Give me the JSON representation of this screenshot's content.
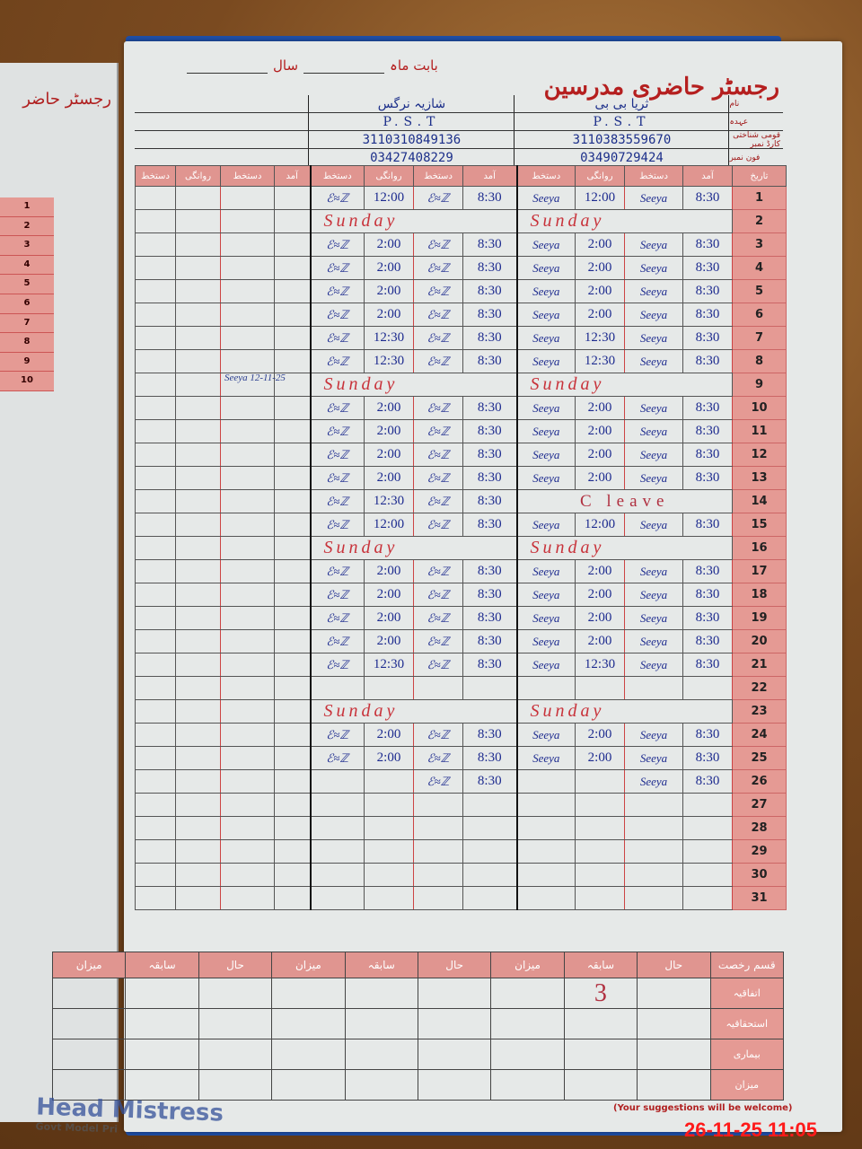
{
  "register": {
    "title": "رجسٹر حاضری مدرسین",
    "month_label": "بابت ماہ",
    "year_label": "سال"
  },
  "info_labels": [
    "نام",
    "عہدہ",
    "قومی شناختی کارڈ نمبر",
    "فون نمبر"
  ],
  "teachers": [
    {
      "name": "شازیہ نرگس",
      "designation": "P.S.T",
      "cnic": "3110310849136",
      "phone": "03427408229",
      "signature": "scribble"
    },
    {
      "name": "ثریا بی بی",
      "designation": "P.S.T",
      "cnic": "3110383559670",
      "phone": "03490729424",
      "signature": "Seeya"
    }
  ],
  "column_headers": {
    "sign": "دستخط",
    "departure": "روانگی",
    "arrival": "آمد",
    "date": "تاریخ"
  },
  "attendance": [
    {
      "day": "1",
      "t1": [
        "12:00",
        "8:30"
      ],
      "t2": [
        "12:00",
        "8:30"
      ]
    },
    {
      "day": "2",
      "t1": "Sunday",
      "t2": "Sunday"
    },
    {
      "day": "3",
      "t1": [
        "2:00",
        "8:30"
      ],
      "t2": [
        "2:00",
        "8:30"
      ]
    },
    {
      "day": "4",
      "t1": [
        "2:00",
        "8:30"
      ],
      "t2": [
        "2:00",
        "8:30"
      ]
    },
    {
      "day": "5",
      "t1": [
        "2:00",
        "8:30"
      ],
      "t2": [
        "2:00",
        "8:30"
      ]
    },
    {
      "day": "6",
      "t1": [
        "2:00",
        "8:30"
      ],
      "t2": [
        "2:00",
        "8:30"
      ]
    },
    {
      "day": "7",
      "t1": [
        "12:30",
        "8:30"
      ],
      "t2": [
        "12:30",
        "8:30"
      ]
    },
    {
      "day": "8",
      "t1": [
        "12:30",
        "8:30"
      ],
      "t2": [
        "12:30",
        "8:30"
      ]
    },
    {
      "day": "9",
      "t1": "Sunday",
      "t2": "Sunday"
    },
    {
      "day": "10",
      "t1": [
        "2:00",
        "8:30"
      ],
      "t2": [
        "2:00",
        "8:30"
      ]
    },
    {
      "day": "11",
      "t1": [
        "2:00",
        "8:30"
      ],
      "t2": [
        "2:00",
        "8:30"
      ]
    },
    {
      "day": "12",
      "t1": [
        "2:00",
        "8:30"
      ],
      "t2": [
        "2:00",
        "8:30"
      ]
    },
    {
      "day": "13",
      "t1": [
        "2:00",
        "8:30"
      ],
      "t2": [
        "2:00",
        "8:30"
      ]
    },
    {
      "day": "14",
      "t1": [
        "12:30",
        "8:30"
      ],
      "t2": "C leave"
    },
    {
      "day": "15",
      "t1": [
        "12:00",
        "8:30"
      ],
      "t2": [
        "12:00",
        "8:30"
      ]
    },
    {
      "day": "16",
      "t1": "Sunday",
      "t2": "Sunday"
    },
    {
      "day": "17",
      "t1": [
        "2:00",
        "8:30"
      ],
      "t2": [
        "2:00",
        "8:30"
      ]
    },
    {
      "day": "18",
      "t1": [
        "2:00",
        "8:30"
      ],
      "t2": [
        "2:00",
        "8:30"
      ]
    },
    {
      "day": "19",
      "t1": [
        "2:00",
        "8:30"
      ],
      "t2": [
        "2:00",
        "8:30"
      ]
    },
    {
      "day": "20",
      "t1": [
        "2:00",
        "8:30"
      ],
      "t2": [
        "2:00",
        "8:30"
      ]
    },
    {
      "day": "21",
      "t1": [
        "12:30",
        "8:30"
      ],
      "t2": [
        "12:30",
        "8:30"
      ]
    },
    {
      "day": "22",
      "t1": null,
      "t2": null
    },
    {
      "day": "23",
      "t1": "Sunday",
      "t2": "Sunday"
    },
    {
      "day": "24",
      "t1": [
        "2:00",
        "8:30"
      ],
      "t2": [
        "2:00",
        "8:30"
      ]
    },
    {
      "day": "25",
      "t1": [
        "2:00",
        "8:30"
      ],
      "t2": [
        "2:00",
        "8:30"
      ]
    },
    {
      "day": "26",
      "t1": [
        "",
        "8:30"
      ],
      "t2": [
        "",
        "8:30"
      ]
    },
    {
      "day": "27",
      "t1": null,
      "t2": null
    },
    {
      "day": "28",
      "t1": null,
      "t2": null
    },
    {
      "day": "29",
      "t1": null,
      "t2": null
    },
    {
      "day": "30",
      "t1": null,
      "t2": null
    },
    {
      "day": "31",
      "t1": null,
      "t2": null
    }
  ],
  "summary": {
    "headers": [
      "میزان",
      "سابقہ",
      "حال",
      "میزان",
      "سابقہ",
      "حال",
      "میزان",
      "سابقہ",
      "حال",
      "قسم رخصت"
    ],
    "rows": [
      {
        "label": "اتفاقیہ",
        "values": [
          "",
          "",
          "",
          "",
          "",
          "",
          "",
          "3",
          ""
        ]
      },
      {
        "label": "استحقاقیہ",
        "values": [
          "",
          "",
          "",
          "",
          "",
          "",
          "",
          "",
          ""
        ]
      },
      {
        "label": "بیماری",
        "values": [
          "",
          "",
          "",
          "",
          "",
          "",
          "",
          "",
          ""
        ]
      },
      {
        "label": "میزان",
        "values": [
          "",
          "",
          "",
          "",
          "",
          "",
          "",
          "",
          ""
        ]
      }
    ]
  },
  "margin_note": "Seeya 12-11-25",
  "footer": {
    "suggestions": "(Your suggestions will be welcome)",
    "timestamp": "26-11-25  11:05"
  },
  "stamp": {
    "text": "Head Mistress",
    "subtext": "Govt Model Pri"
  },
  "left_page": {
    "title": "رجسٹر حاضر",
    "days": [
      "1",
      "2",
      "3",
      "4",
      "5",
      "6",
      "7",
      "8",
      "9",
      "10"
    ]
  },
  "colors": {
    "header_pink": "#e09590",
    "title_red": "#b51f1f",
    "ink_blue": "#1d2b8f",
    "sunday_red": "#c8323a",
    "cover_blue": "#1f4fa8"
  }
}
